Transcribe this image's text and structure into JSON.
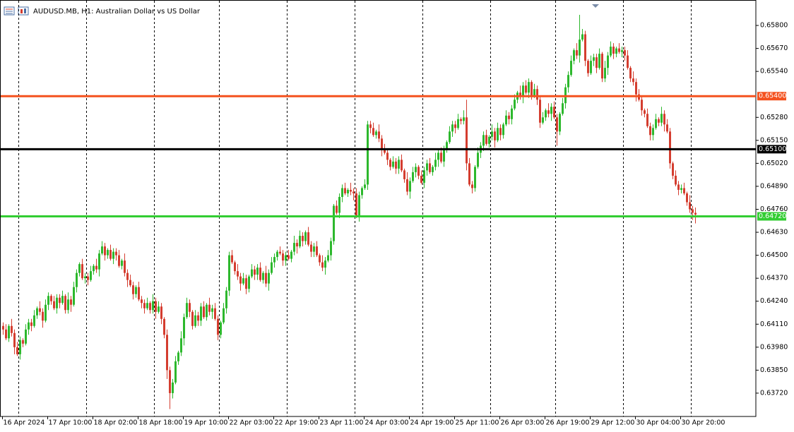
{
  "chart_data": {
    "type": "candlestick",
    "title": "AUDUSD.MB, H1:  Australian Dollar vs US Dollar",
    "up_color": "#2db82d",
    "down_color": "#d43d2f",
    "ylim": [
      0.63588,
      0.6592
    ],
    "yticks": [
      {
        "value": 0.658,
        "label": "0.65800"
      },
      {
        "value": 0.6567,
        "label": "0.65670"
      },
      {
        "value": 0.6554,
        "label": "0.65540"
      },
      {
        "value": 0.6528,
        "label": "0.65280"
      },
      {
        "value": 0.6515,
        "label": "0.65150"
      },
      {
        "value": 0.6502,
        "label": "0.65020"
      },
      {
        "value": 0.6489,
        "label": "0.64890"
      },
      {
        "value": 0.6476,
        "label": "0.64760"
      },
      {
        "value": 0.6463,
        "label": "0.64630"
      },
      {
        "value": 0.645,
        "label": "0.64500"
      },
      {
        "value": 0.6437,
        "label": "0.64370"
      },
      {
        "value": 0.6424,
        "label": "0.64240"
      },
      {
        "value": 0.6411,
        "label": "0.64110"
      },
      {
        "value": 0.6398,
        "label": "0.63980"
      },
      {
        "value": 0.6385,
        "label": "0.63850"
      },
      {
        "value": 0.6372,
        "label": "0.63720"
      }
    ],
    "levels": [
      {
        "value": 0.654,
        "label": "0.65400",
        "color": "#f4511e"
      },
      {
        "value": 0.651,
        "label": "0.65100",
        "color": "#000000"
      },
      {
        "value": 0.6472,
        "label": "0.64720",
        "color": "#32cd32"
      }
    ],
    "categories": [
      "16 Apr 2024",
      null,
      null,
      null,
      null,
      null,
      null,
      null,
      null,
      null,
      null,
      null,
      null,
      null,
      null,
      null,
      "17 Apr 10:00",
      null,
      null,
      null,
      null,
      null,
      null,
      null,
      null,
      null,
      null,
      null,
      null,
      null,
      null,
      null,
      "18 Apr 02:00",
      null,
      null,
      null,
      null,
      null,
      null,
      null,
      null,
      null,
      null,
      null,
      null,
      null,
      null,
      null,
      "18 Apr 18:00",
      null,
      null,
      null,
      null,
      null,
      null,
      null,
      null,
      null,
      null,
      null,
      null,
      null,
      null,
      null,
      "19 Apr 10:00",
      null,
      null,
      null,
      null,
      null,
      null,
      null,
      null,
      null,
      null,
      null,
      null,
      null,
      null,
      null,
      "22 Apr 03:00",
      null,
      null,
      null,
      null,
      null,
      null,
      null,
      null,
      null,
      null,
      null,
      null,
      null,
      null,
      null,
      "22 Apr 19:00",
      null,
      null,
      null,
      null,
      null,
      null,
      null,
      null,
      null,
      null,
      null,
      null,
      null,
      null,
      null,
      "23 Apr 11:00",
      null,
      null,
      null,
      null,
      null,
      null,
      null,
      null,
      null,
      null,
      null,
      null,
      null,
      null,
      null,
      "24 Apr 03:00",
      null,
      null,
      null,
      null,
      null,
      null,
      null,
      null,
      null,
      null,
      null,
      null,
      null,
      null,
      null,
      "24 Apr 19:00",
      null,
      null,
      null,
      null,
      null,
      null,
      null,
      null,
      null,
      null,
      null,
      null,
      null,
      null,
      null,
      "25 Apr 11:00",
      null,
      null,
      null,
      null,
      null,
      null,
      null,
      null,
      null,
      null,
      null,
      null,
      null,
      null,
      null,
      "26 Apr 03:00",
      null,
      null,
      null,
      null,
      null,
      null,
      null,
      null,
      null,
      null,
      null,
      null,
      null,
      null,
      null,
      "26 Apr 19:00",
      null,
      null,
      null,
      null,
      null,
      null,
      null,
      null,
      null,
      null,
      null,
      null,
      null,
      null,
      null,
      "29 Apr 12:00",
      null,
      null,
      null,
      null,
      null,
      null,
      null,
      null,
      null,
      null,
      null,
      null,
      null,
      null,
      null,
      "30 Apr 04:00",
      null,
      null,
      null,
      null,
      null,
      null,
      null,
      null,
      null,
      null,
      null,
      null,
      null,
      null,
      null,
      "30 Apr 20:00",
      null,
      null,
      null,
      null,
      null
    ],
    "open": [
      0.641,
      0.6408,
      0.6403,
      0.641,
      0.6406,
      0.6398,
      0.6394,
      0.6402,
      0.64,
      0.6408,
      0.6412,
      0.641,
      0.6416,
      0.642,
      0.6418,
      0.6413,
      0.6422,
      0.6427,
      0.6424,
      0.642,
      0.6426,
      0.6423,
      0.6427,
      0.6419,
      0.6425,
      0.6422,
      0.6432,
      0.644,
      0.6445,
      0.6437,
      0.6438,
      0.6436,
      0.6441,
      0.6444,
      0.6442,
      0.6451,
      0.6455,
      0.645,
      0.6453,
      0.6448,
      0.6452,
      0.645,
      0.6444,
      0.6447,
      0.644,
      0.6436,
      0.6433,
      0.6428,
      0.6432,
      0.6425,
      0.6423,
      0.642,
      0.6423,
      0.6419,
      0.6424,
      0.6418,
      0.6421,
      0.6414,
      0.6405,
      0.6385,
      0.6372,
      0.6378,
      0.639,
      0.6395,
      0.6403,
      0.6415,
      0.6423,
      0.6418,
      0.641,
      0.6416,
      0.6413,
      0.6421,
      0.6415,
      0.6422,
      0.6418,
      0.642,
      0.6414,
      0.6405,
      0.6412,
      0.642,
      0.643,
      0.645,
      0.6446,
      0.6441,
      0.6438,
      0.6434,
      0.6437,
      0.6431,
      0.6438,
      0.6442,
      0.6439,
      0.6443,
      0.6436,
      0.644,
      0.6434,
      0.644,
      0.6446,
      0.6449,
      0.6452,
      0.6451,
      0.6447,
      0.645,
      0.6448,
      0.6452,
      0.6457,
      0.6455,
      0.6461,
      0.6458,
      0.6463,
      0.6456,
      0.6452,
      0.6455,
      0.645,
      0.6446,
      0.6443,
      0.6447,
      0.645,
      0.6458,
      0.6478,
      0.6474,
      0.6483,
      0.6488,
      0.6485,
      0.6487,
      0.6486,
      0.6485,
      0.6472,
      0.6484,
      0.6488,
      0.649,
      0.6524,
      0.6522,
      0.6518,
      0.652,
      0.6516,
      0.651,
      0.6508,
      0.6504,
      0.65,
      0.6503,
      0.6499,
      0.6504,
      0.6498,
      0.6493,
      0.6486,
      0.6492,
      0.6497,
      0.65,
      0.6495,
      0.6491,
      0.6498,
      0.6502,
      0.6497,
      0.65,
      0.6504,
      0.6508,
      0.6503,
      0.651,
      0.6514,
      0.652,
      0.6524,
      0.6522,
      0.6527,
      0.6526,
      0.6528,
      0.6502,
      0.649,
      0.6488,
      0.65,
      0.6508,
      0.6512,
      0.6518,
      0.6513,
      0.6517,
      0.652,
      0.6515,
      0.6522,
      0.6518,
      0.6524,
      0.6529,
      0.6527,
      0.6533,
      0.6538,
      0.6542,
      0.654,
      0.6546,
      0.6542,
      0.6548,
      0.654,
      0.6544,
      0.6538,
      0.6525,
      0.6528,
      0.6532,
      0.653,
      0.6534,
      0.6528,
      0.652,
      0.653,
      0.6536,
      0.6545,
      0.6552,
      0.656,
      0.6566,
      0.6563,
      0.6572,
      0.6575,
      0.656,
      0.6553,
      0.656,
      0.6562,
      0.6556,
      0.6564,
      0.655,
      0.6556,
      0.6563,
      0.6568,
      0.6564,
      0.6567,
      0.6565,
      0.6566,
      0.6563,
      0.6556,
      0.655,
      0.6548,
      0.6541,
      0.6538,
      0.6532,
      0.653,
      0.6523,
      0.6518,
      0.6522,
      0.6527,
      0.6525,
      0.653,
      0.6524,
      0.652,
      0.6502,
      0.6495,
      0.649,
      0.6487,
      0.6488,
      0.6485,
      0.648,
      0.6476,
      0.6474
    ],
    "high": [
      0.6412,
      0.6411,
      0.6411,
      0.6414,
      0.6408,
      0.6401,
      0.6404,
      0.6403,
      0.6411,
      0.6414,
      0.6414,
      0.6419,
      0.6421,
      0.6424,
      0.642,
      0.6425,
      0.6429,
      0.6428,
      0.6427,
      0.6428,
      0.6428,
      0.643,
      0.6428,
      0.6429,
      0.6427,
      0.6435,
      0.6442,
      0.6446,
      0.6448,
      0.644,
      0.644,
      0.6444,
      0.6445,
      0.6448,
      0.6453,
      0.6458,
      0.6457,
      0.6454,
      0.6456,
      0.6454,
      0.6454,
      0.6453,
      0.6448,
      0.6451,
      0.6442,
      0.6439,
      0.6435,
      0.6433,
      0.6435,
      0.6427,
      0.6425,
      0.6426,
      0.6424,
      0.6428,
      0.6426,
      0.6424,
      0.6423,
      0.6415,
      0.6408,
      0.6387,
      0.638,
      0.6393,
      0.6396,
      0.6407,
      0.6417,
      0.6426,
      0.6425,
      0.6419,
      0.6419,
      0.6418,
      0.6423,
      0.6424,
      0.6423,
      0.6426,
      0.6422,
      0.6423,
      0.6416,
      0.6413,
      0.6423,
      0.6432,
      0.6452,
      0.6453,
      0.6447,
      0.6445,
      0.644,
      0.644,
      0.6439,
      0.6439,
      0.6445,
      0.6444,
      0.6445,
      0.6446,
      0.6441,
      0.6444,
      0.6442,
      0.6449,
      0.6451,
      0.6453,
      0.6455,
      0.6453,
      0.6452,
      0.6453,
      0.6453,
      0.6461,
      0.6459,
      0.6464,
      0.6463,
      0.6464,
      0.6466,
      0.6458,
      0.6457,
      0.6458,
      0.6451,
      0.645,
      0.6449,
      0.6453,
      0.646,
      0.6479,
      0.6481,
      0.6485,
      0.649,
      0.6491,
      0.6488,
      0.6491,
      0.6488,
      0.6488,
      0.6486,
      0.6489,
      0.6493,
      0.6526,
      0.6526,
      0.6525,
      0.6521,
      0.6524,
      0.6518,
      0.6513,
      0.651,
      0.6505,
      0.6506,
      0.6505,
      0.6506,
      0.6507,
      0.6499,
      0.6497,
      0.6494,
      0.65,
      0.6502,
      0.6501,
      0.6498,
      0.65,
      0.6504,
      0.6505,
      0.6501,
      0.6508,
      0.651,
      0.6511,
      0.6512,
      0.6515,
      0.6523,
      0.6526,
      0.6526,
      0.653,
      0.6528,
      0.6532,
      0.6538,
      0.6505,
      0.6492,
      0.6501,
      0.6511,
      0.6514,
      0.652,
      0.6521,
      0.6518,
      0.6524,
      0.6522,
      0.6525,
      0.6524,
      0.6525,
      0.6532,
      0.6531,
      0.6535,
      0.6541,
      0.6543,
      0.6546,
      0.6548,
      0.6549,
      0.655,
      0.6549,
      0.6547,
      0.6546,
      0.654,
      0.6531,
      0.6533,
      0.6536,
      0.6536,
      0.6537,
      0.653,
      0.6531,
      0.6539,
      0.6547,
      0.6554,
      0.6563,
      0.6567,
      0.657,
      0.6586,
      0.6578,
      0.6577,
      0.6561,
      0.6563,
      0.6564,
      0.6564,
      0.6567,
      0.6565,
      0.656,
      0.6565,
      0.6571,
      0.657,
      0.6568,
      0.657,
      0.6568,
      0.6568,
      0.6566,
      0.6557,
      0.6554,
      0.655,
      0.6544,
      0.654,
      0.6533,
      0.6533,
      0.6525,
      0.6524,
      0.653,
      0.6528,
      0.6534,
      0.6532,
      0.6527,
      0.6522,
      0.6503,
      0.6498,
      0.6492,
      0.649,
      0.6491,
      0.6486,
      0.6484,
      0.6478,
      0.6477
    ],
    "low": [
      0.6405,
      0.6402,
      0.6401,
      0.6404,
      0.6394,
      0.6393,
      0.6391,
      0.6398,
      0.6399,
      0.6405,
      0.6407,
      0.6409,
      0.6414,
      0.6416,
      0.6409,
      0.6412,
      0.6419,
      0.6422,
      0.6419,
      0.6417,
      0.642,
      0.6422,
      0.6417,
      0.6417,
      0.6418,
      0.6421,
      0.6429,
      0.6438,
      0.6436,
      0.6434,
      0.6433,
      0.6435,
      0.6439,
      0.644,
      0.6438,
      0.645,
      0.6447,
      0.6448,
      0.6447,
      0.6445,
      0.6447,
      0.6443,
      0.6442,
      0.6438,
      0.6432,
      0.6432,
      0.6425,
      0.6426,
      0.6424,
      0.642,
      0.6417,
      0.6419,
      0.6417,
      0.6417,
      0.6414,
      0.6417,
      0.6411,
      0.6403,
      0.638,
      0.6363,
      0.6369,
      0.6377,
      0.6388,
      0.6393,
      0.6399,
      0.6414,
      0.6415,
      0.6408,
      0.6409,
      0.641,
      0.641,
      0.6414,
      0.6413,
      0.6416,
      0.6414,
      0.6413,
      0.6402,
      0.6403,
      0.6411,
      0.6417,
      0.6427,
      0.6445,
      0.6439,
      0.6436,
      0.643,
      0.6433,
      0.6428,
      0.6429,
      0.6437,
      0.6436,
      0.6436,
      0.6435,
      0.6434,
      0.6432,
      0.643,
      0.6439,
      0.6443,
      0.6447,
      0.645,
      0.6444,
      0.6444,
      0.6447,
      0.6446,
      0.645,
      0.6451,
      0.6454,
      0.6455,
      0.6456,
      0.6455,
      0.6449,
      0.6449,
      0.6449,
      0.6444,
      0.6441,
      0.6439,
      0.6446,
      0.6447,
      0.6456,
      0.6473,
      0.6471,
      0.648,
      0.6484,
      0.6483,
      0.6484,
      0.6481,
      0.6471,
      0.6469,
      0.6482,
      0.6487,
      0.6487,
      0.6519,
      0.6517,
      0.6516,
      0.6514,
      0.6506,
      0.6507,
      0.6501,
      0.6498,
      0.6499,
      0.6496,
      0.6496,
      0.6497,
      0.6491,
      0.6484,
      0.6482,
      0.6491,
      0.6494,
      0.6493,
      0.649,
      0.6488,
      0.6495,
      0.6496,
      0.6495,
      0.6498,
      0.65,
      0.6502,
      0.65,
      0.6508,
      0.6513,
      0.6517,
      0.6519,
      0.6521,
      0.6524,
      0.6524,
      0.6498,
      0.6489,
      0.6485,
      0.6486,
      0.6499,
      0.6505,
      0.6509,
      0.6512,
      0.6511,
      0.6515,
      0.6511,
      0.6514,
      0.6515,
      0.6516,
      0.6523,
      0.6524,
      0.6524,
      0.6532,
      0.6536,
      0.6538,
      0.6536,
      0.6541,
      0.6539,
      0.6538,
      0.6539,
      0.6535,
      0.6522,
      0.6524,
      0.6526,
      0.6528,
      0.6526,
      0.6527,
      0.6512,
      0.6518,
      0.6529,
      0.6533,
      0.6542,
      0.6551,
      0.6558,
      0.6561,
      0.6559,
      0.6571,
      0.6557,
      0.6551,
      0.6552,
      0.6557,
      0.6553,
      0.6555,
      0.6548,
      0.6548,
      0.6552,
      0.6562,
      0.6561,
      0.6562,
      0.6564,
      0.6562,
      0.656,
      0.6555,
      0.6548,
      0.6546,
      0.6537,
      0.6537,
      0.6529,
      0.6528,
      0.6522,
      0.6515,
      0.6515,
      0.6521,
      0.6523,
      0.6523,
      0.652,
      0.6519,
      0.6499,
      0.6493,
      0.6489,
      0.6484,
      0.6485,
      0.6484,
      0.6478,
      0.6474,
      0.647,
      0.6468
    ],
    "close": [
      0.6408,
      0.6403,
      0.641,
      0.6406,
      0.6398,
      0.6394,
      0.6402,
      0.64,
      0.6408,
      0.6412,
      0.641,
      0.6416,
      0.642,
      0.6418,
      0.6413,
      0.6422,
      0.6427,
      0.6424,
      0.642,
      0.6426,
      0.6423,
      0.6427,
      0.6419,
      0.6425,
      0.6422,
      0.6432,
      0.644,
      0.6445,
      0.6437,
      0.6438,
      0.6436,
      0.6441,
      0.6444,
      0.6442,
      0.6451,
      0.6455,
      0.645,
      0.6453,
      0.6448,
      0.6452,
      0.645,
      0.6444,
      0.6447,
      0.644,
      0.6436,
      0.6433,
      0.6428,
      0.6432,
      0.6425,
      0.6423,
      0.642,
      0.6423,
      0.6419,
      0.6424,
      0.6418,
      0.6421,
      0.6414,
      0.6405,
      0.6385,
      0.6372,
      0.6378,
      0.639,
      0.6395,
      0.6403,
      0.6415,
      0.6423,
      0.6418,
      0.641,
      0.6416,
      0.6413,
      0.6421,
      0.6415,
      0.6422,
      0.6418,
      0.642,
      0.6414,
      0.6405,
      0.6412,
      0.642,
      0.643,
      0.645,
      0.6446,
      0.6441,
      0.6438,
      0.6434,
      0.6437,
      0.6431,
      0.6438,
      0.6442,
      0.6439,
      0.6443,
      0.6436,
      0.644,
      0.6434,
      0.644,
      0.6446,
      0.6449,
      0.6452,
      0.6451,
      0.6447,
      0.645,
      0.6448,
      0.6452,
      0.6457,
      0.6455,
      0.6461,
      0.6458,
      0.6463,
      0.6456,
      0.6452,
      0.6455,
      0.645,
      0.6446,
      0.6443,
      0.6447,
      0.645,
      0.6458,
      0.6478,
      0.6474,
      0.6483,
      0.6488,
      0.6485,
      0.6487,
      0.6486,
      0.6485,
      0.6472,
      0.6484,
      0.6488,
      0.649,
      0.6524,
      0.6522,
      0.6518,
      0.652,
      0.6516,
      0.651,
      0.6508,
      0.6504,
      0.65,
      0.6503,
      0.6499,
      0.6504,
      0.6498,
      0.6493,
      0.6486,
      0.6492,
      0.6497,
      0.65,
      0.6495,
      0.6491,
      0.6498,
      0.6502,
      0.6497,
      0.65,
      0.6504,
      0.6508,
      0.6503,
      0.651,
      0.6514,
      0.652,
      0.6524,
      0.6522,
      0.6527,
      0.6526,
      0.6528,
      0.6502,
      0.649,
      0.6488,
      0.65,
      0.6508,
      0.6512,
      0.6518,
      0.6513,
      0.6517,
      0.652,
      0.6515,
      0.6522,
      0.6518,
      0.6524,
      0.6529,
      0.6527,
      0.6533,
      0.6538,
      0.6542,
      0.654,
      0.6546,
      0.6542,
      0.6548,
      0.654,
      0.6544,
      0.6538,
      0.6525,
      0.6528,
      0.6532,
      0.653,
      0.6534,
      0.6528,
      0.652,
      0.653,
      0.6536,
      0.6545,
      0.6552,
      0.656,
      0.6566,
      0.6563,
      0.6572,
      0.6575,
      0.656,
      0.6553,
      0.656,
      0.6562,
      0.6556,
      0.6564,
      0.655,
      0.6556,
      0.6563,
      0.6568,
      0.6564,
      0.6567,
      0.6565,
      0.6566,
      0.6563,
      0.6556,
      0.655,
      0.6548,
      0.6541,
      0.6538,
      0.6532,
      0.653,
      0.6523,
      0.6518,
      0.6522,
      0.6527,
      0.6525,
      0.653,
      0.6524,
      0.652,
      0.6502,
      0.6495,
      0.649,
      0.6487,
      0.6488,
      0.6485,
      0.648,
      0.6476,
      0.6474,
      0.6473
    ]
  }
}
